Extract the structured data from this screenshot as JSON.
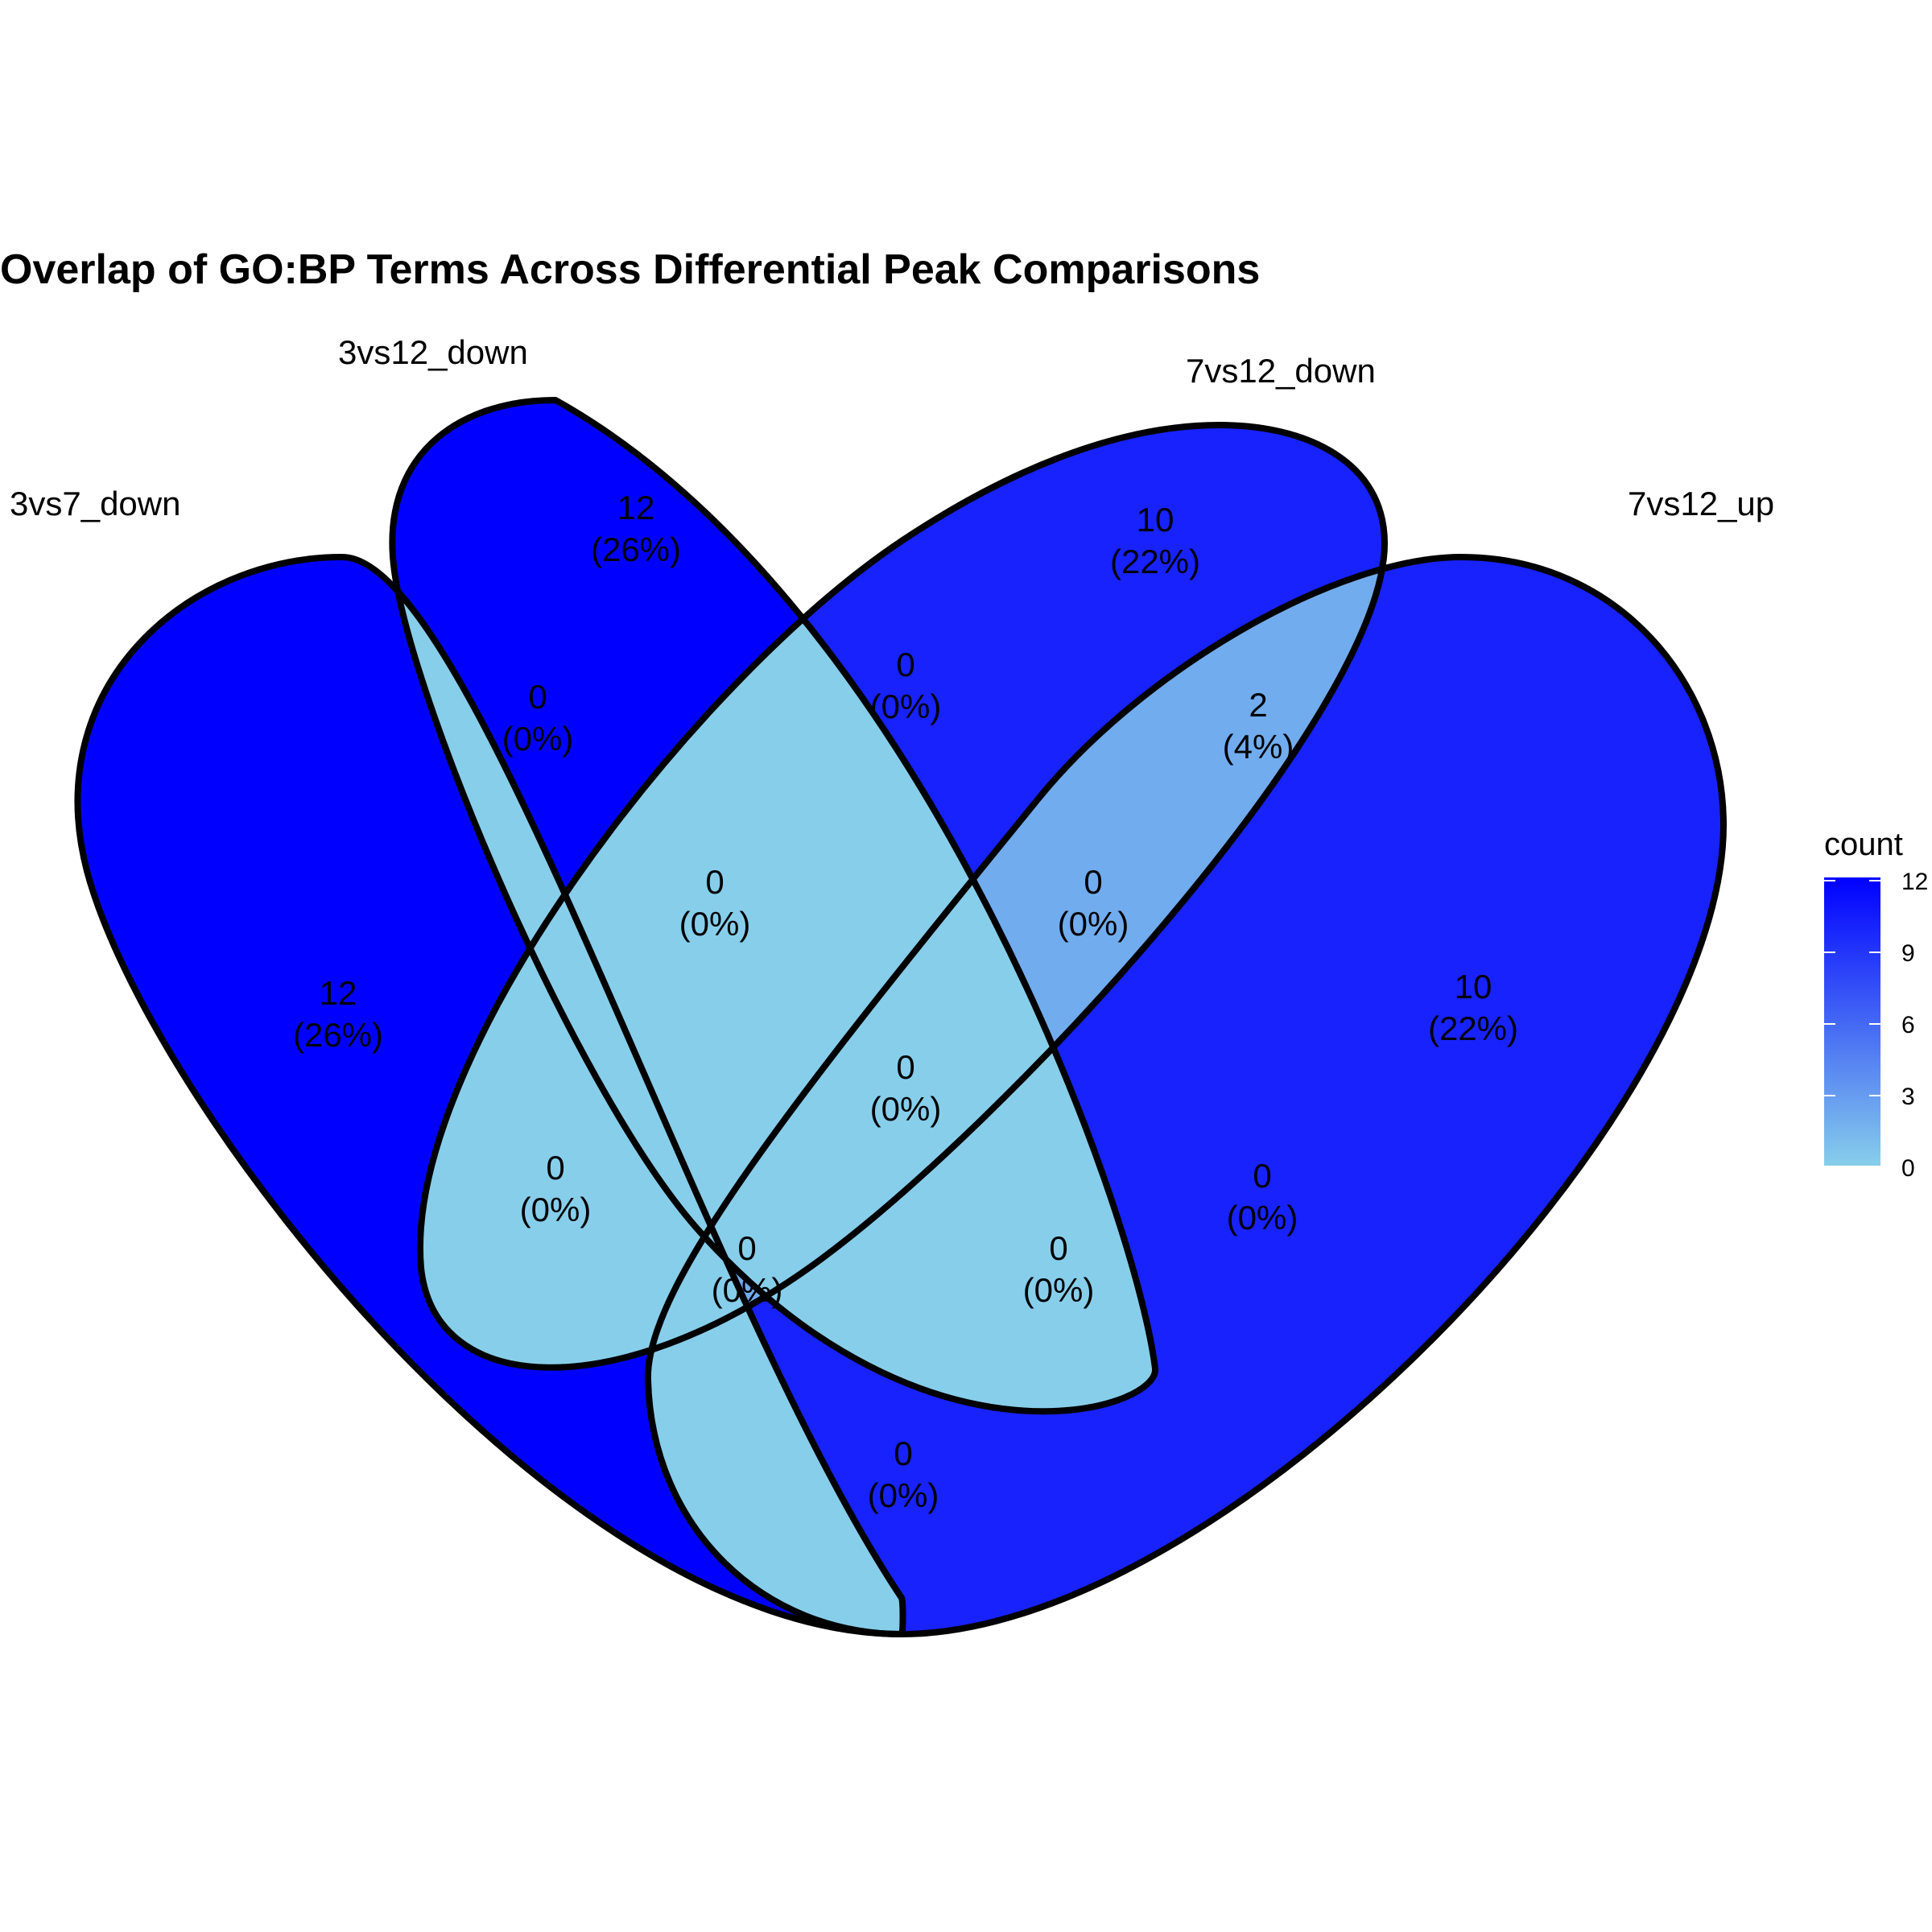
{
  "title": "Overlap of GO:BP Terms Across Differential Peak Comparisons",
  "colors": {
    "low": "#87CEEB",
    "high": "#0000FF",
    "stroke": "#000000"
  },
  "chart_data": {
    "type": "venn",
    "sets": [
      "3vs7_down",
      "3vs12_down",
      "7vs12_down",
      "7vs12_up"
    ],
    "regions": [
      {
        "id": "A",
        "sets": [
          "3vs7_down"
        ],
        "count": "12",
        "percent": "(26%)"
      },
      {
        "id": "B",
        "sets": [
          "3vs12_down"
        ],
        "count": "12",
        "percent": "(26%)"
      },
      {
        "id": "C",
        "sets": [
          "7vs12_down"
        ],
        "count": "10",
        "percent": "(22%)"
      },
      {
        "id": "D",
        "sets": [
          "7vs12_up"
        ],
        "count": "10",
        "percent": "(22%)"
      },
      {
        "id": "AB",
        "sets": [
          "3vs7_down",
          "3vs12_down"
        ],
        "count": "0",
        "percent": "(0%)"
      },
      {
        "id": "BC",
        "sets": [
          "3vs12_down",
          "7vs12_down"
        ],
        "count": "0",
        "percent": "(0%)"
      },
      {
        "id": "CD",
        "sets": [
          "7vs12_down",
          "7vs12_up"
        ],
        "count": "2",
        "percent": "(4%)"
      },
      {
        "id": "ABC",
        "sets": [
          "3vs7_down",
          "3vs12_down",
          "7vs12_down"
        ],
        "count": "0",
        "percent": "(0%)"
      },
      {
        "id": "BCD",
        "sets": [
          "3vs12_down",
          "7vs12_down",
          "7vs12_up"
        ],
        "count": "0",
        "percent": "(0%)"
      },
      {
        "id": "ABCD",
        "sets": [
          "3vs7_down",
          "3vs12_down",
          "7vs12_down",
          "7vs12_up"
        ],
        "count": "0",
        "percent": "(0%)"
      },
      {
        "id": "AC",
        "sets": [
          "3vs7_down",
          "7vs12_down"
        ],
        "count": "0",
        "percent": "(0%)"
      },
      {
        "id": "BD",
        "sets": [
          "3vs12_down",
          "7vs12_up"
        ],
        "count": "0",
        "percent": "(0%)"
      },
      {
        "id": "ACD",
        "sets": [
          "3vs7_down",
          "7vs12_down",
          "7vs12_up"
        ],
        "count": "0",
        "percent": "(0%)"
      },
      {
        "id": "ABD",
        "sets": [
          "3vs7_down",
          "3vs12_down",
          "7vs12_up"
        ],
        "count": "0",
        "percent": "(0%)"
      },
      {
        "id": "AD",
        "sets": [
          "3vs7_down",
          "7vs12_up"
        ],
        "count": "0",
        "percent": "(0%)"
      }
    ],
    "legend": {
      "title": "count",
      "ticks": [
        "0",
        "3",
        "6",
        "9",
        "12"
      ],
      "range": [
        0,
        12
      ],
      "placement": "right"
    }
  }
}
